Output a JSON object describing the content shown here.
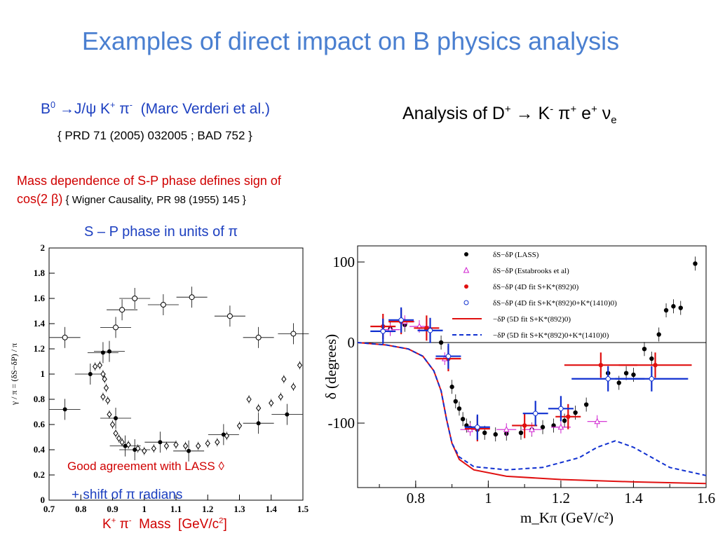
{
  "slide": {
    "title": "Examples of direct impact on B physics analysis",
    "ref1": {
      "B": "B",
      "B_sup": "0",
      "arrow": " →J/ψ K",
      "K_sup": "+",
      "pi": " π",
      "pi_sup": "-",
      "authors": "  (Marc Verderi et al.)",
      "citation": "{ PRD 71 (2005) 032005 ; BAD 752 }"
    },
    "analysis": {
      "text1": "Analysis of D",
      "D_sup": "+",
      "text2": " → K",
      "K_sup": "-",
      "text3": " π",
      "pi_sup": "+",
      "text4": " e",
      "e_sup": "+",
      "text5": " ν",
      "nu_sub": "e"
    },
    "mass_note": {
      "line1": "Mass dependence of S-P phase defines sign of",
      "line2": "cos(2 β)",
      "citation": " { Wigner Causality, PR 98 (1955) 145 }"
    },
    "sp_phase": "S – P phase in units of π",
    "agreement": "Good agreement with LASS  ◊",
    "shift": "+ shift of π  radians",
    "xlabel_left": {
      "t1": "K",
      "t1_sup": "+",
      "t2": " π",
      "t2_sup": "-",
      "t3": "  Mass  [GeV/c",
      "t3_sup": "2",
      "t4": "]"
    }
  },
  "chart_data": [
    {
      "type": "scatter",
      "name": "left",
      "ylabel": "γ / π = (δS−δP) / π",
      "xlim": [
        0.7,
        1.5
      ],
      "ylim": [
        0,
        2
      ],
      "xticks": [
        "0.7",
        "0.8",
        "0.9",
        "1",
        "1.1",
        "1.2",
        "1.3",
        "1.4",
        "1.5"
      ],
      "yticks": [
        "0",
        "0.2",
        "0.4",
        "0.6",
        "0.8",
        "1",
        "1.2",
        "1.4",
        "1.6",
        "1.8",
        "2"
      ],
      "series": [
        {
          "marker": "open-circle",
          "points": [
            [
              0.75,
              1.29
            ],
            [
              0.91,
              1.37
            ],
            [
              0.93,
              1.51
            ],
            [
              0.97,
              1.6
            ],
            [
              1.06,
              1.55
            ],
            [
              1.15,
              1.61
            ],
            [
              1.27,
              1.46
            ],
            [
              1.36,
              1.29
            ],
            [
              1.47,
              1.32
            ]
          ]
        },
        {
          "marker": "filled-circle",
          "points": [
            [
              0.75,
              0.72
            ],
            [
              0.83,
              1.0
            ],
            [
              0.87,
              1.17
            ],
            [
              0.89,
              1.18
            ],
            [
              0.91,
              0.65
            ],
            [
              0.94,
              0.43
            ],
            [
              0.97,
              0.4
            ],
            [
              1.05,
              0.46
            ],
            [
              1.14,
              0.39
            ],
            [
              1.25,
              0.52
            ],
            [
              1.36,
              0.61
            ],
            [
              1.45,
              0.68
            ]
          ]
        },
        {
          "marker": "open-diamond",
          "points": [
            [
              0.845,
              1.06
            ],
            [
              0.86,
              1.07
            ],
            [
              0.87,
              1.0
            ],
            [
              0.875,
              0.96
            ],
            [
              0.87,
              0.82
            ],
            [
              0.88,
              0.89
            ],
            [
              0.885,
              0.79
            ],
            [
              0.89,
              0.68
            ],
            [
              0.9,
              0.6
            ],
            [
              0.91,
              0.53
            ],
            [
              0.92,
              0.49
            ],
            [
              0.93,
              0.46
            ],
            [
              0.95,
              0.44
            ],
            [
              0.98,
              0.41
            ],
            [
              1.0,
              0.39
            ],
            [
              1.03,
              0.41
            ],
            [
              1.07,
              0.43
            ],
            [
              1.1,
              0.44
            ],
            [
              1.13,
              0.43
            ],
            [
              1.17,
              0.43
            ],
            [
              1.2,
              0.45
            ],
            [
              1.23,
              0.46
            ],
            [
              1.26,
              0.51
            ],
            [
              1.3,
              0.59
            ],
            [
              1.33,
              0.8
            ],
            [
              1.36,
              0.73
            ],
            [
              1.4,
              0.77
            ],
            [
              1.43,
              0.82
            ],
            [
              1.44,
              0.96
            ],
            [
              1.47,
              0.9
            ],
            [
              1.49,
              1.07
            ]
          ]
        }
      ]
    },
    {
      "type": "line",
      "name": "right",
      "xlabel": "m_Kπ (GeV/c²)",
      "ylabel": "δ (degrees)",
      "xlim": [
        0.64,
        1.6
      ],
      "ylim": [
        -180,
        120
      ],
      "xticks": [
        "0.8",
        "1",
        "1.2",
        "1.4",
        "1.6"
      ],
      "yticks": [
        "-100",
        "0",
        "100"
      ],
      "legend": [
        "δS−δP (LASS)",
        "δS−δP (Estabrooks et al)",
        "δS−δP (4D fit S+K*(892)0)",
        "δS−δP (4D fit S+K*(892)0+K*(1410)0)",
        "−δP (5D fit S+K*(892)0)",
        "−δP (5D fit S+K*(892)0+K*(1410)0)"
      ],
      "legend_position": "top-center",
      "series": [
        {
          "name": "LASS",
          "color": "#000000",
          "points": [
            [
              0.73,
              17
            ],
            [
              0.77,
              22
            ],
            [
              0.83,
              17
            ],
            [
              0.87,
              0
            ],
            [
              0.89,
              -20
            ],
            [
              0.9,
              -55
            ],
            [
              0.91,
              -73
            ],
            [
              0.92,
              -82
            ],
            [
              0.93,
              -95
            ],
            [
              0.94,
              -103
            ],
            [
              0.95,
              -106
            ],
            [
              0.97,
              -108
            ],
            [
              0.99,
              -112
            ],
            [
              1.02,
              -114
            ],
            [
              1.05,
              -113
            ],
            [
              1.09,
              -112
            ],
            [
              1.12,
              -108
            ],
            [
              1.15,
              -105
            ],
            [
              1.18,
              -103
            ],
            [
              1.21,
              -97
            ],
            [
              1.24,
              -87
            ],
            [
              1.27,
              -77
            ],
            [
              1.33,
              -38
            ],
            [
              1.36,
              -50
            ],
            [
              1.38,
              -38
            ],
            [
              1.4,
              -40
            ],
            [
              1.43,
              -8
            ],
            [
              1.45,
              -20
            ],
            [
              1.47,
              10
            ],
            [
              1.49,
              40
            ],
            [
              1.51,
              45
            ],
            [
              1.53,
              43
            ],
            [
              1.57,
              98
            ]
          ]
        },
        {
          "name": "Estabrooks",
          "color": "#d020d0",
          "points": [
            [
              0.73,
              16
            ],
            [
              0.77,
              26
            ],
            [
              0.81,
              20
            ],
            [
              0.88,
              -20
            ],
            [
              0.95,
              -108
            ],
            [
              1.05,
              -108
            ],
            [
              1.12,
              -108
            ],
            [
              1.2,
              -105
            ],
            [
              1.3,
              -98
            ]
          ]
        },
        {
          "name": "4D fit S+K*(892)",
          "color": "#e01010",
          "points": [
            [
              0.71,
              20
            ],
            [
              0.76,
              26
            ],
            [
              0.83,
              18
            ],
            [
              0.89,
              -20
            ],
            [
              0.97,
              -107
            ],
            [
              1.1,
              -103
            ],
            [
              1.22,
              -92
            ],
            [
              1.31,
              -28
            ],
            [
              1.46,
              -28
            ]
          ]
        },
        {
          "name": "4D fit S+K*(892)+K*(1410)",
          "color": "#1030d0",
          "points": [
            [
              0.71,
              14
            ],
            [
              0.76,
              28
            ],
            [
              0.84,
              15
            ],
            [
              0.89,
              -17
            ],
            [
              0.97,
              -105
            ],
            [
              1.13,
              -88
            ],
            [
              1.2,
              -82
            ],
            [
              1.33,
              -45
            ],
            [
              1.45,
              -45
            ]
          ]
        },
        {
          "name": "5D fit S+K*(892)",
          "color": "#e01010",
          "style": "solid",
          "points": [
            [
              0.64,
              0
            ],
            [
              0.72,
              -3
            ],
            [
              0.78,
              -8
            ],
            [
              0.82,
              -17
            ],
            [
              0.85,
              -35
            ],
            [
              0.87,
              -60
            ],
            [
              0.885,
              -95
            ],
            [
              0.9,
              -125
            ],
            [
              0.92,
              -145
            ],
            [
              0.96,
              -158
            ],
            [
              1.05,
              -166
            ],
            [
              1.2,
              -170
            ],
            [
              1.4,
              -173
            ],
            [
              1.6,
              -175
            ]
          ]
        },
        {
          "name": "5D fit S+K*(892)+K*(1410)",
          "color": "#1030d0",
          "style": "dashed",
          "points": [
            [
              0.64,
              0
            ],
            [
              0.72,
              -3
            ],
            [
              0.78,
              -8
            ],
            [
              0.82,
              -17
            ],
            [
              0.85,
              -35
            ],
            [
              0.87,
              -60
            ],
            [
              0.885,
              -95
            ],
            [
              0.9,
              -125
            ],
            [
              0.92,
              -142
            ],
            [
              0.96,
              -154
            ],
            [
              1.05,
              -158
            ],
            [
              1.15,
              -155
            ],
            [
              1.25,
              -143
            ],
            [
              1.3,
              -130
            ],
            [
              1.35,
              -122
            ],
            [
              1.4,
              -130
            ],
            [
              1.5,
              -155
            ],
            [
              1.6,
              -165
            ]
          ]
        }
      ]
    }
  ]
}
